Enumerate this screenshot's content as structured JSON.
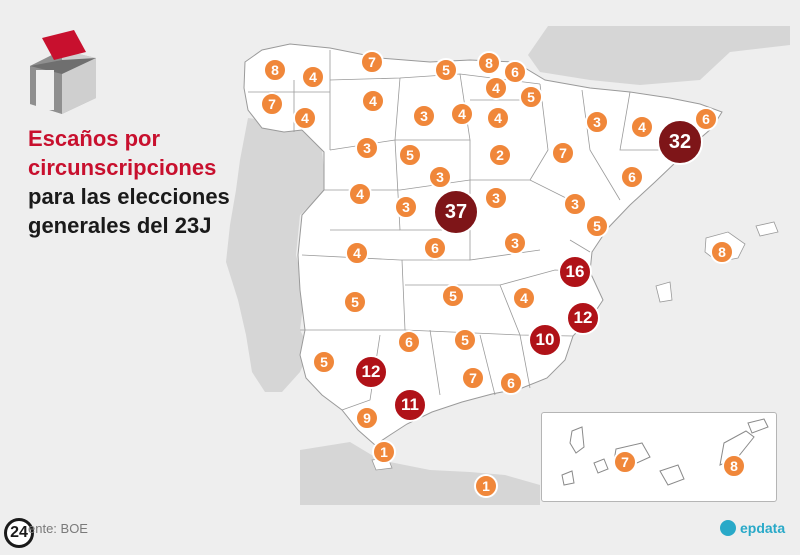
{
  "title": {
    "line1": "Escaños por",
    "line2": "circunscripciones",
    "line3": "para las elecciones",
    "line4": "generales del 23J"
  },
  "source": "ente: BOE",
  "logo_text": "24",
  "brand": "epdata",
  "colors": {
    "small": "#f0873a",
    "mid": "#b01218",
    "big": "#7e1518",
    "land": "#ffffff",
    "sea": "#eeeeee",
    "foreign_land": "#d6d6d6",
    "border": "#9a9a9a",
    "title_red": "#c8102e"
  },
  "icons": [
    "ballot-box-icon",
    "epdata-logo-icon",
    "24-logo-icon"
  ],
  "constituencies": [
    {
      "seats": 8,
      "region": "A Coruña"
    },
    {
      "seats": 4,
      "region": "Lugo"
    },
    {
      "seats": 7,
      "region": "Asturias"
    },
    {
      "seats": 5,
      "region": "Cantabria"
    },
    {
      "seats": 8,
      "region": "Bizkaia"
    },
    {
      "seats": 6,
      "region": "Gipuzkoa"
    },
    {
      "seats": 7,
      "region": "Pontevedra"
    },
    {
      "seats": 4,
      "region": "Ourense"
    },
    {
      "seats": 4,
      "region": "León"
    },
    {
      "seats": 3,
      "region": "Palencia"
    },
    {
      "seats": 4,
      "region": "Burgos"
    },
    {
      "seats": 4,
      "region": "Álava"
    },
    {
      "seats": 5,
      "region": "Navarra"
    },
    {
      "seats": 4,
      "region": "La Rioja"
    },
    {
      "seats": 3,
      "region": "Huesca"
    },
    {
      "seats": 4,
      "region": "Lleida"
    },
    {
      "seats": 32,
      "region": "Barcelona"
    },
    {
      "seats": 6,
      "region": "Girona"
    },
    {
      "seats": 3,
      "region": "Zamora"
    },
    {
      "seats": 5,
      "region": "Valladolid"
    },
    {
      "seats": 2,
      "region": "Soria"
    },
    {
      "seats": 7,
      "region": "Zaragoza"
    },
    {
      "seats": 6,
      "region": "Tarragona"
    },
    {
      "seats": 3,
      "region": "Segovia"
    },
    {
      "seats": 4,
      "region": "Salamanca"
    },
    {
      "seats": 3,
      "region": "Ávila"
    },
    {
      "seats": 37,
      "region": "Madrid"
    },
    {
      "seats": 3,
      "region": "Guadalajara"
    },
    {
      "seats": 3,
      "region": "Teruel"
    },
    {
      "seats": 5,
      "region": "Castellón"
    },
    {
      "seats": 4,
      "region": "Cáceres"
    },
    {
      "seats": 6,
      "region": "Toledo"
    },
    {
      "seats": 3,
      "region": "Cuenca"
    },
    {
      "seats": 16,
      "region": "Valencia"
    },
    {
      "seats": 8,
      "region": "Illes Balears"
    },
    {
      "seats": 5,
      "region": "Badajoz"
    },
    {
      "seats": 5,
      "region": "Ciudad Real"
    },
    {
      "seats": 4,
      "region": "Albacete"
    },
    {
      "seats": 12,
      "region": "Alicante"
    },
    {
      "seats": 5,
      "region": "Huelva"
    },
    {
      "seats": 12,
      "region": "Sevilla"
    },
    {
      "seats": 6,
      "region": "Córdoba"
    },
    {
      "seats": 5,
      "region": "Jaén"
    },
    {
      "seats": 10,
      "region": "Murcia"
    },
    {
      "seats": 7,
      "region": "Granada"
    },
    {
      "seats": 6,
      "region": "Almería"
    },
    {
      "seats": 9,
      "region": "Cádiz"
    },
    {
      "seats": 11,
      "region": "Málaga"
    },
    {
      "seats": 1,
      "region": "Ceuta"
    },
    {
      "seats": 1,
      "region": "Melilla"
    },
    {
      "seats": 7,
      "region": "Santa Cruz de Tenerife"
    },
    {
      "seats": 8,
      "region": "Las Palmas"
    }
  ]
}
